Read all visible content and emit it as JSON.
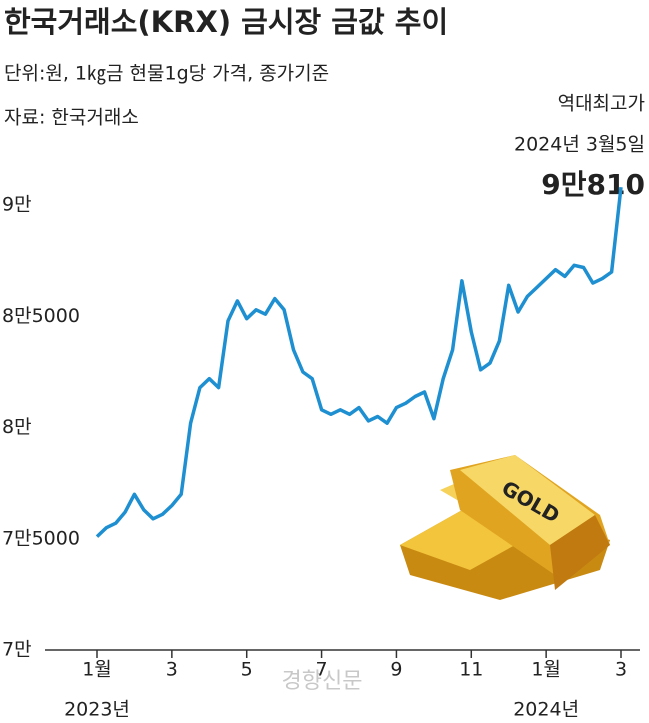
{
  "chart_data": {
    "type": "line",
    "title": "한국거래소(KRX) 금시장 금값 추이",
    "subtitle": "단위:원, 1㎏금 현물1g당 가격, 종가기준",
    "source": "자료: 한국거래소",
    "annotation": [
      "역대최고가",
      "2024년 3월5일"
    ],
    "annotation_value": "9만810",
    "watermark": "경향신문",
    "year_labels": [
      "2023년",
      "2024년"
    ],
    "categories": [
      "1월",
      null,
      null,
      null,
      null,
      null,
      null,
      null,
      "3",
      null,
      null,
      null,
      null,
      null,
      null,
      null,
      "5",
      null,
      null,
      null,
      null,
      null,
      null,
      null,
      "7",
      null,
      null,
      null,
      null,
      null,
      null,
      null,
      "9",
      null,
      null,
      null,
      null,
      null,
      null,
      null,
      "11",
      null,
      null,
      null,
      null,
      null,
      null,
      null,
      "1월",
      null,
      null,
      null,
      null,
      null,
      null,
      null,
      "3"
    ],
    "series": [
      {
        "name": "금값",
        "color": "#1e8fd0",
        "values": [
          75100,
          75500,
          75700,
          76200,
          77000,
          76300,
          75900,
          76100,
          76500,
          77000,
          80200,
          81800,
          82200,
          81800,
          84800,
          85700,
          84900,
          85300,
          85100,
          85800,
          85300,
          83500,
          82500,
          82200,
          80800,
          80600,
          80800,
          80600,
          80900,
          80300,
          80500,
          80200,
          80900,
          81100,
          81400,
          81600,
          80400,
          82200,
          83500,
          86600,
          84300,
          82600,
          82900,
          83900,
          86400,
          85200,
          85900,
          86300,
          86700,
          87100,
          86800,
          87300,
          87200,
          86500,
          86700,
          87000,
          90810
        ]
      }
    ],
    "ylim": [
      70000,
      91000
    ],
    "yticks": [
      {
        "value": 70000,
        "label": "7만"
      },
      {
        "value": 75000,
        "label": "7만5000"
      },
      {
        "value": 80000,
        "label": "8만"
      },
      {
        "value": 85000,
        "label": "8만5000"
      },
      {
        "value": 90000,
        "label": "9만"
      }
    ]
  }
}
